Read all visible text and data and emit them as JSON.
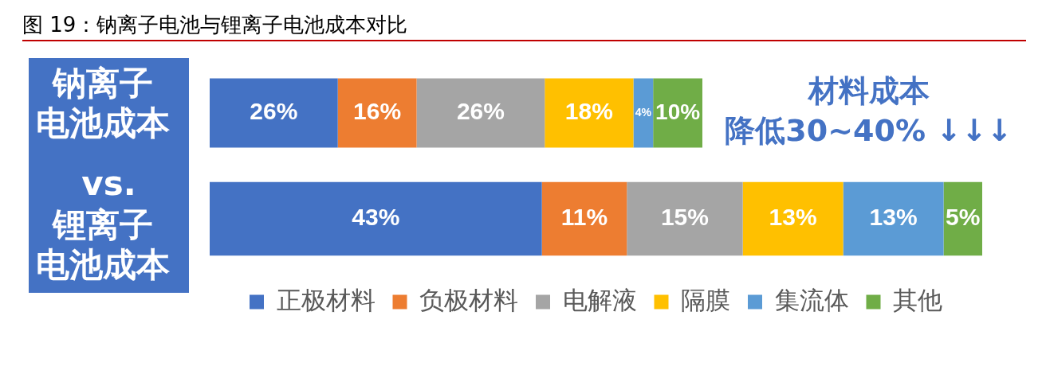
{
  "chart_data": [
    {
      "type": "bar",
      "orientation": "horizontal",
      "stacked": true,
      "title": "图 19：钠离子电池与锂离子电池成本对比",
      "categories": [
        "钠离子电池成本"
      ],
      "series": [
        {
          "color": "#4472c4",
          "values": [
            26
          ],
          "value_labels": [
            "26%"
          ]
        },
        {
          "color": "#ed7d31",
          "values": [
            16
          ],
          "value_labels": [
            "16%"
          ]
        },
        {
          "color": "#a5a5a5",
          "values": [
            26
          ],
          "value_labels": [
            "26%"
          ]
        },
        {
          "color": "#ffc000",
          "values": [
            18
          ],
          "value_labels": [
            "18%"
          ]
        },
        {
          "color": "#5b9bd5",
          "values": [
            4
          ],
          "value_labels": [
            "4%"
          ]
        },
        {
          "color": "#70ad47",
          "values": [
            10
          ],
          "value_labels": [
            "10%"
          ]
        }
      ],
      "annotations": [
        "材料成本",
        "降低30~40% ↓↓↓"
      ]
    },
    {
      "type": "bar",
      "orientation": "horizontal",
      "stacked": true,
      "categories": [
        "锂离子电池成本"
      ],
      "series": [
        {
          "name": "正极材料",
          "color": "#4472c4",
          "values": [
            43
          ],
          "value_labels": [
            "43%"
          ]
        },
        {
          "name": "负极材料",
          "color": "#ed7d31",
          "values": [
            11
          ],
          "value_labels": [
            "11%"
          ]
        },
        {
          "name": "电解液",
          "color": "#a5a5a5",
          "values": [
            15
          ],
          "value_labels": [
            "15%"
          ]
        },
        {
          "name": "隔膜",
          "color": "#ffc000",
          "values": [
            13
          ],
          "value_labels": [
            "13%"
          ]
        },
        {
          "name": "集流体",
          "color": "#5b9bd5",
          "values": [
            13
          ],
          "value_labels": [
            "13%"
          ]
        },
        {
          "name": "其他",
          "color": "#70ad47",
          "values": [
            5
          ],
          "value_labels": [
            "5%"
          ]
        }
      ],
      "legend": "bottom",
      "annotations": [
        "vs."
      ]
    }
  ]
}
